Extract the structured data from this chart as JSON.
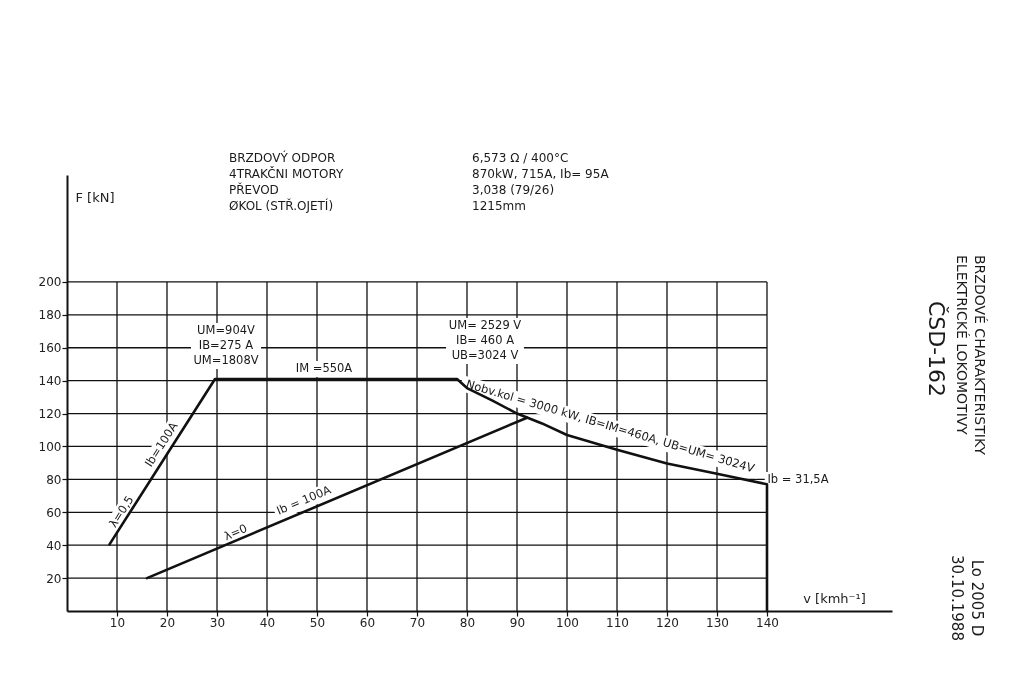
{
  "chart_data": {
    "type": "line",
    "title": "BRZDOVÉ CHARAKTERISTIKY\nELEKTRICKÉ LOKOMOTIVY",
    "subtitle": "ČSD-162",
    "xlabel": "v [kmh⁻¹]",
    "ylabel": "F [kN]",
    "series": [
      {
        "color": "#111111",
        "x": [
          8.5,
          29.6,
          78,
          80,
          85,
          90,
          95,
          100,
          110,
          120,
          130,
          140,
          140
        ],
        "values": [
          40.5,
          141,
          141,
          135.5,
          128,
          120,
          114,
          107,
          98,
          89.7,
          83.4,
          77,
          0
        ]
      },
      {
        "color": "#111111",
        "x": [
          16,
          92
        ],
        "values": [
          20,
          117.5
        ]
      }
    ],
    "xlim": [
      0,
      165
    ],
    "ylim": [
      0,
      265
    ],
    "xticks": [
      10,
      20,
      30,
      40,
      50,
      60,
      70,
      80,
      90,
      100,
      110,
      120,
      130,
      140
    ],
    "yticks": [
      20,
      40,
      60,
      80,
      100,
      120,
      140,
      160,
      180,
      200
    ],
    "grid": true,
    "annotations": [
      "BRZDOVÝ ODPOR\n4TRAKČNI MOTORY\nPŘEVOD\nØKOL (STŘ.OJETÍ)",
      "6,573 Ω / 400°C\n870kW, 715A, Ib= 95A\n3,038 (79/26)\n1215mm",
      "Lo 2005 D\n30.10.1988",
      "UM=904V\nIB=275 A\nUM=1808V",
      "IM =550A",
      "UM= 2529 V\nIB= 460 A\nUB=3024 V",
      "Nobv.kol = 3000 kW, IB=IM=460A, UB=UM= 3024V",
      "Ib = 31,5A",
      "λ=0,5",
      "Ib=100A",
      "λ=0",
      "Ib = 100A"
    ]
  }
}
